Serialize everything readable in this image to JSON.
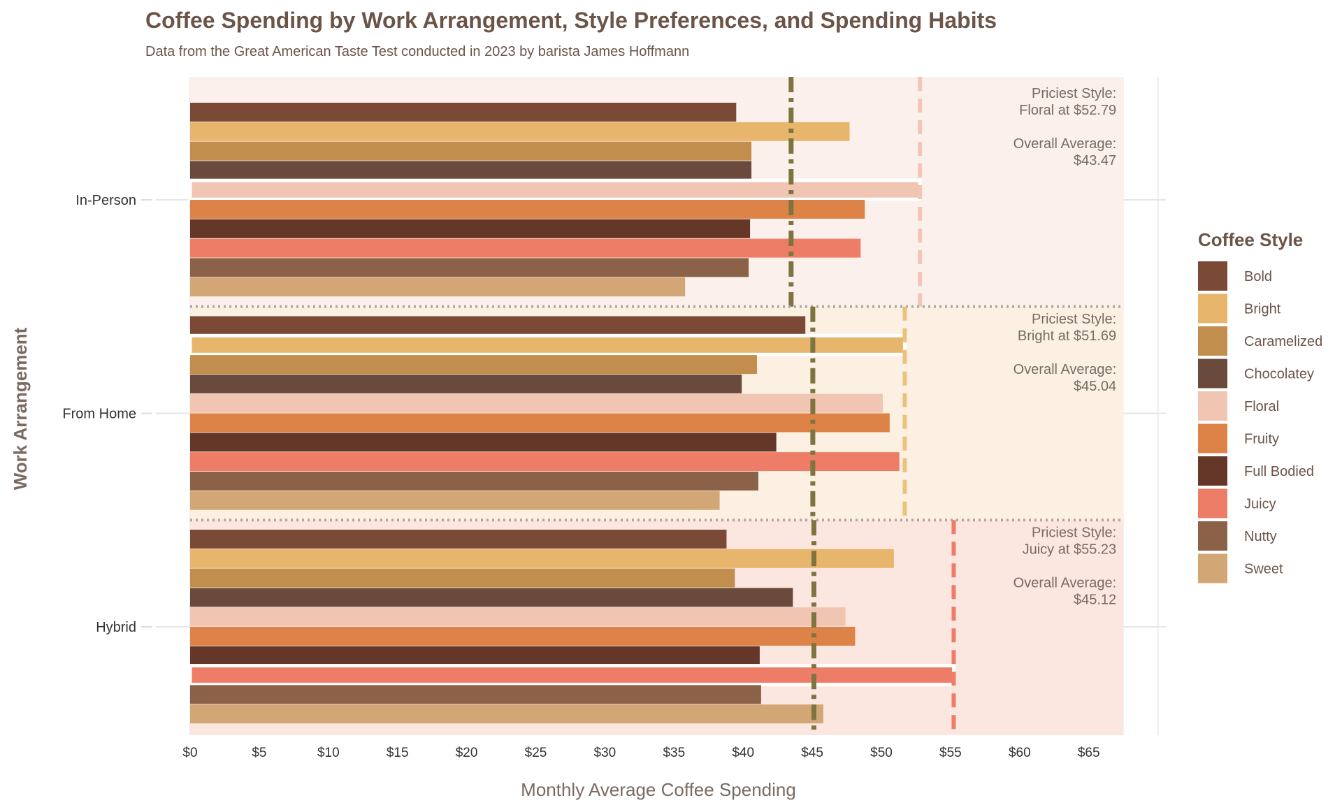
{
  "chart_data": {
    "type": "bar",
    "orientation": "horizontal",
    "title": "Coffee Spending by Work Arrangement, Style Preferences, and Spending Habits",
    "subtitle": "Data from the Great American Taste Test conducted in 2023 by barista James Hoffmann",
    "xlabel": "Monthly Average Coffee Spending",
    "ylabel": "Work Arrangement",
    "xlim": [
      -2.5,
      70
    ],
    "x_ticks": [
      0,
      5,
      10,
      15,
      20,
      25,
      30,
      35,
      40,
      45,
      50,
      55,
      60,
      65
    ],
    "x_tick_labels": [
      "$0",
      "$5",
      "$10",
      "$15",
      "$20",
      "$25",
      "$30",
      "$35",
      "$40",
      "$45",
      "$50",
      "$55",
      "$60",
      "$65"
    ],
    "grid": true,
    "legend_title": "Coffee Style",
    "legend_position": "right",
    "categories": [
      "In-Person",
      "From Home",
      "Hybrid"
    ],
    "styles": [
      "Bold",
      "Bright",
      "Caramelized",
      "Chocolatey",
      "Floral",
      "Fruity",
      "Full Bodied",
      "Juicy",
      "Nutty",
      "Sweet"
    ],
    "style_colors": [
      "#7B4A36",
      "#E8B56C",
      "#C28E4E",
      "#6B4A3E",
      "#F0C5B1",
      "#DE8347",
      "#643729",
      "#EE7D67",
      "#8B6248",
      "#D3A775"
    ],
    "groups": [
      {
        "name": "In-Person",
        "band_color": "#fbf0ec",
        "priciest_line_color": "#f2c6b5",
        "overall_average": 43.47,
        "priciest_style": "Floral",
        "priciest_value": 52.79,
        "annotation_lines": [
          "Priciest Style:",
          "Floral at $52.79",
          "",
          "Overall Average:",
          "$43.47"
        ],
        "values": [
          39.5,
          47.7,
          40.6,
          40.6,
          52.79,
          48.8,
          40.5,
          48.5,
          40.4,
          35.8
        ]
      },
      {
        "name": "From Home",
        "band_color": "#fcf0e3",
        "priciest_line_color": "#ebc27c",
        "overall_average": 45.04,
        "priciest_style": "Bright",
        "priciest_value": 51.69,
        "annotation_lines": [
          "Priciest Style:",
          "Bright at $51.69",
          "",
          "Overall Average:",
          "$45.04"
        ],
        "values": [
          44.5,
          51.69,
          41.0,
          39.9,
          50.1,
          50.6,
          42.4,
          51.3,
          41.1,
          38.3
        ]
      },
      {
        "name": "Hybrid",
        "band_color": "#fce6e0",
        "priciest_line_color": "#ee7d67",
        "overall_average": 45.12,
        "priciest_style": "Juicy",
        "priciest_value": 55.23,
        "annotation_lines": [
          "Priciest Style:",
          "Juicy at $55.23",
          "",
          "Overall Average:",
          "$45.12"
        ],
        "values": [
          38.8,
          50.9,
          39.4,
          43.6,
          47.4,
          48.1,
          41.2,
          55.23,
          41.3,
          45.8
        ]
      }
    ],
    "average_line_color": "#7d7440"
  }
}
